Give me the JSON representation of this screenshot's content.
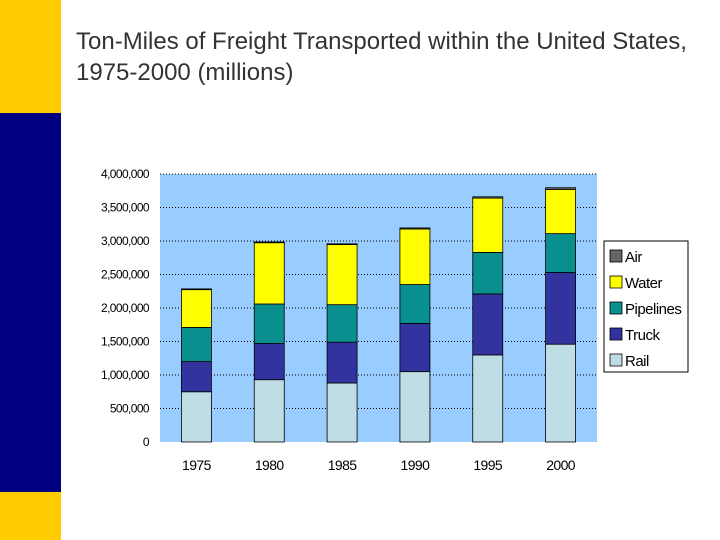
{
  "slide": {
    "title": "Ton-Miles of Freight Transported within the United States, 1975-2000 (millions)"
  },
  "colors": {
    "accent_yellow": "#FFCC00",
    "accent_navy": "#000080",
    "plot_background": "#99CCFF",
    "rail": "#BFDDE4",
    "truck": "#3333A0",
    "pipelines": "#0A8F8F",
    "water": "#FFFF00",
    "air": "#666666"
  },
  "chart_data": {
    "type": "bar",
    "stacked": true,
    "title": "",
    "xlabel": "",
    "ylabel": "",
    "categories": [
      "1975",
      "1980",
      "1985",
      "1990",
      "1995",
      "2000"
    ],
    "ylim": [
      0,
      4000000
    ],
    "yticks": [
      0,
      500000,
      1000000,
      1500000,
      2000000,
      2500000,
      3000000,
      3500000,
      4000000
    ],
    "ytick_labels": [
      "0",
      "500,000",
      "1,000,000",
      "1,500,000",
      "2,000,000",
      "2,500,000",
      "3,000,000",
      "3,500,000",
      "4,000,000"
    ],
    "grid": true,
    "legend_position": "right",
    "series": [
      {
        "name": "Rail",
        "color": "#BFDDE4",
        "values": [
          750000,
          930000,
          880000,
          1050000,
          1300000,
          1460000
        ]
      },
      {
        "name": "Truck",
        "color": "#3333A0",
        "values": [
          450000,
          540000,
          610000,
          720000,
          910000,
          1070000
        ]
      },
      {
        "name": "Pipelines",
        "color": "#0A8F8F",
        "values": [
          510000,
          590000,
          560000,
          580000,
          620000,
          580000
        ]
      },
      {
        "name": "Water",
        "color": "#FFFF00",
        "values": [
          570000,
          920000,
          900000,
          830000,
          810000,
          660000
        ]
      },
      {
        "name": "Air",
        "color": "#666666",
        "values": [
          5000,
          5000,
          8000,
          15000,
          20000,
          25000
        ]
      }
    ],
    "legend_order": [
      "Air",
      "Water",
      "Pipelines",
      "Truck",
      "Rail"
    ]
  }
}
